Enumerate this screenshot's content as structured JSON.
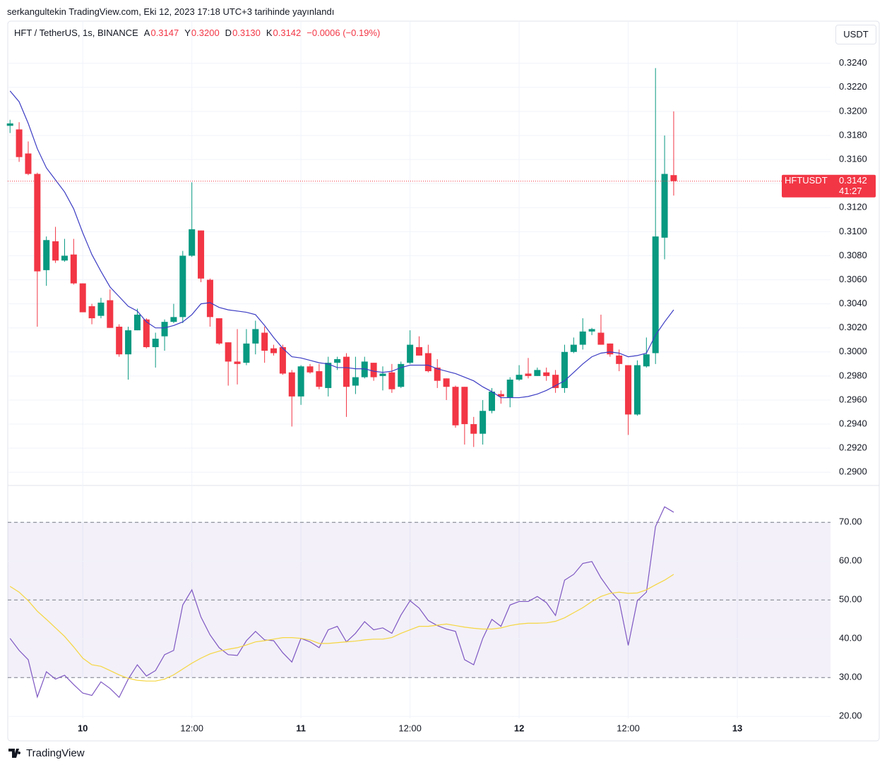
{
  "header": {
    "published": "serkangultekin TradingView.com, Eki 12, 2023 17:18 UTC+3 tarihinde yayınlandı",
    "symbol": "HFT / TetherUS, 1s, BINANCE",
    "ohlc": [
      {
        "key": "A",
        "value": "0.3147"
      },
      {
        "key": "Y",
        "value": "0.3200"
      },
      {
        "key": "D",
        "value": "0.3130"
      },
      {
        "key": "K",
        "value": "0.3142"
      }
    ],
    "change": "−0.0006 (−0.19%)",
    "currency": "USDT"
  },
  "footer": {
    "brand": "TradingView"
  },
  "chart_data": [
    {
      "type": "candlestick",
      "up_color": "#089981",
      "down_color": "#f23645",
      "open": [
        0.3188,
        0.3185,
        0.3165,
        0.3148,
        0.3068,
        0.3092,
        0.3076,
        0.3081,
        0.3057,
        0.3038,
        0.303,
        0.3043,
        0.3021,
        0.2998,
        0.3018,
        0.3027,
        0.3004,
        0.3013,
        0.3025,
        0.3029,
        0.308,
        0.3101,
        0.306,
        0.3028,
        0.3008,
        0.2992,
        0.2991,
        0.3007,
        0.3016,
        0.3003,
        0.3004,
        0.2983,
        0.2963,
        0.2988,
        0.2984,
        0.297,
        0.2991,
        0.2996,
        0.2972,
        0.2979,
        0.2991,
        0.298,
        0.2983,
        0.2971,
        0.2991,
        0.3004,
        0.2999,
        0.2987,
        0.2978,
        0.2971,
        0.2971,
        0.294,
        0.2932,
        0.2951,
        0.2965,
        0.2962,
        0.2977,
        0.2982,
        0.298,
        0.2983,
        0.2981,
        0.297,
        0.3,
        0.3006,
        0.3017,
        0.3016,
        0.3007,
        0.2997,
        0.2989,
        0.2948,
        0.2988,
        0.2999,
        0.3095,
        0.3147
      ],
      "high": [
        0.3193,
        0.3191,
        0.3175,
        0.3149,
        0.3096,
        0.3104,
        0.3094,
        0.3094,
        0.3057,
        0.304,
        0.3045,
        0.3052,
        0.3023,
        0.3021,
        0.3036,
        0.3028,
        0.3016,
        0.3027,
        0.304,
        0.3084,
        0.3141,
        0.3101,
        0.3061,
        0.3028,
        0.3008,
        0.3019,
        0.3019,
        0.3026,
        0.3021,
        0.3006,
        0.3006,
        0.2985,
        0.2989,
        0.299,
        0.299,
        0.2996,
        0.2996,
        0.2999,
        0.2996,
        0.2996,
        0.2991,
        0.2988,
        0.299,
        0.2992,
        0.3018,
        0.3013,
        0.3006,
        0.2994,
        0.2978,
        0.2972,
        0.2971,
        0.2946,
        0.296,
        0.297,
        0.2968,
        0.2979,
        0.2989,
        0.2995,
        0.2987,
        0.2987,
        0.2985,
        0.3006,
        0.3012,
        0.3028,
        0.302,
        0.3031,
        0.3007,
        0.3002,
        0.2989,
        0.2993,
        0.3012,
        0.3236,
        0.318,
        0.32
      ],
      "low": [
        0.3182,
        0.3158,
        0.3147,
        0.3021,
        0.3055,
        0.3074,
        0.3075,
        0.3056,
        0.3033,
        0.3023,
        0.3028,
        0.302,
        0.2996,
        0.2977,
        0.3018,
        0.3003,
        0.2987,
        0.3001,
        0.3024,
        0.3024,
        0.3079,
        0.3058,
        0.3021,
        0.3006,
        0.2972,
        0.2973,
        0.2989,
        0.2998,
        0.2991,
        0.2997,
        0.2981,
        0.2938,
        0.2956,
        0.2982,
        0.2969,
        0.2963,
        0.2985,
        0.2946,
        0.2965,
        0.2978,
        0.2976,
        0.2968,
        0.2966,
        0.297,
        0.299,
        0.2997,
        0.2983,
        0.297,
        0.296,
        0.2937,
        0.2923,
        0.2921,
        0.2923,
        0.2949,
        0.2957,
        0.2954,
        0.2976,
        0.2978,
        0.298,
        0.2976,
        0.2966,
        0.2966,
        0.2999,
        0.3002,
        0.3014,
        0.3006,
        0.2996,
        0.2984,
        0.2931,
        0.2947,
        0.2987,
        0.299,
        0.3077,
        0.313
      ],
      "close": [
        0.319,
        0.3162,
        0.3148,
        0.3067,
        0.3093,
        0.3076,
        0.308,
        0.3057,
        0.3033,
        0.3028,
        0.3041,
        0.302,
        0.2998,
        0.3018,
        0.3031,
        0.3004,
        0.3011,
        0.3025,
        0.3029,
        0.308,
        0.3102,
        0.3061,
        0.3029,
        0.3007,
        0.2992,
        0.299,
        0.3007,
        0.3019,
        0.3001,
        0.2999,
        0.2982,
        0.2963,
        0.2988,
        0.2983,
        0.2971,
        0.2991,
        0.2994,
        0.2971,
        0.2979,
        0.2992,
        0.2979,
        0.2982,
        0.2969,
        0.299,
        0.3006,
        0.2997,
        0.2984,
        0.2976,
        0.2971,
        0.2939,
        0.294,
        0.2932,
        0.2951,
        0.2967,
        0.2963,
        0.2977,
        0.2981,
        0.298,
        0.2985,
        0.298,
        0.297,
        0.3,
        0.3006,
        0.3017,
        0.3019,
        0.3006,
        0.2998,
        0.299,
        0.2948,
        0.2989,
        0.2998,
        0.3096,
        0.3148,
        0.3142
      ],
      "ma": {
        "color": "#3c3cc4",
        "values": [
          0.3217,
          0.3208,
          0.319,
          0.3169,
          0.3153,
          0.3143,
          0.3133,
          0.3119,
          0.3099,
          0.3081,
          0.3067,
          0.3054,
          0.3046,
          0.3038,
          0.3034,
          0.3025,
          0.302,
          0.302,
          0.3022,
          0.3025,
          0.3031,
          0.304,
          0.3041,
          0.3037,
          0.3035,
          0.3034,
          0.3033,
          0.3031,
          0.3022,
          0.3012,
          0.3003,
          0.2996,
          0.2995,
          0.2993,
          0.2991,
          0.299,
          0.2987,
          0.2987,
          0.2986,
          0.2986,
          0.2984,
          0.2983,
          0.2984,
          0.2987,
          0.2989,
          0.2989,
          0.2989,
          0.2986,
          0.2984,
          0.2982,
          0.2979,
          0.2976,
          0.2971,
          0.2967,
          0.2962,
          0.2962,
          0.2962,
          0.2963,
          0.2965,
          0.2968,
          0.2972,
          0.2976,
          0.2983,
          0.299,
          0.2996,
          0.2999,
          0.3,
          0.2999,
          0.2996,
          0.2997,
          0.2999,
          0.3014,
          0.3025,
          0.3035
        ]
      },
      "last_price": {
        "symbol": "HFTUSDT",
        "countdown": "41:27",
        "color": "#f23645"
      },
      "xlim": [
        -0.25,
        90.25
      ],
      "xticks": [
        {
          "value": 8,
          "label": "10"
        },
        {
          "value": 20,
          "label": "12:00"
        },
        {
          "value": 32,
          "label": "11"
        },
        {
          "value": 44,
          "label": "12:00"
        },
        {
          "value": 56,
          "label": "12"
        },
        {
          "value": 68,
          "label": "12:00"
        },
        {
          "value": 80,
          "label": "13"
        }
      ],
      "ylim": [
        0.2889,
        0.3275
      ],
      "yticks": [
        {
          "value": 0.29,
          "label": "0.2900"
        },
        {
          "value": 0.292,
          "label": "0.2920"
        },
        {
          "value": 0.294,
          "label": "0.2940"
        },
        {
          "value": 0.296,
          "label": "0.2960"
        },
        {
          "value": 0.298,
          "label": "0.2980"
        },
        {
          "value": 0.3,
          "label": "0.3000"
        },
        {
          "value": 0.302,
          "label": "0.3020"
        },
        {
          "value": 0.304,
          "label": "0.3040"
        },
        {
          "value": 0.306,
          "label": "0.3060"
        },
        {
          "value": 0.308,
          "label": "0.3080"
        },
        {
          "value": 0.31,
          "label": "0.3100"
        },
        {
          "value": 0.312,
          "label": "0.3120"
        },
        {
          "value": 0.314,
          "label": "0.3140"
        },
        {
          "value": 0.316,
          "label": "0.3160"
        },
        {
          "value": 0.318,
          "label": "0.3180"
        },
        {
          "value": 0.32,
          "label": "0.3200"
        },
        {
          "value": 0.322,
          "label": "0.3220"
        },
        {
          "value": 0.324,
          "label": "0.3240"
        }
      ],
      "grid": true
    },
    {
      "type": "line",
      "series": [
        {
          "color": "#7e57c2",
          "values": [
            40.1,
            37.0,
            34.6,
            25.0,
            31.5,
            29.6,
            30.6,
            28.2,
            26.0,
            25.4,
            28.9,
            27.2,
            24.9,
            29.6,
            33.3,
            30.4,
            31.8,
            35.9,
            37.0,
            48.7,
            52.6,
            45.6,
            41.0,
            37.7,
            35.9,
            35.7,
            39.5,
            41.9,
            39.7,
            39.5,
            36.4,
            34.0,
            40.1,
            39.2,
            37.7,
            42.3,
            43.2,
            39.2,
            41.4,
            44.4,
            42.3,
            42.8,
            41.4,
            46.1,
            49.8,
            47.9,
            44.7,
            43.4,
            42.5,
            41.9,
            34.6,
            33.3,
            40.1,
            45.0,
            43.2,
            48.7,
            49.6,
            49.6,
            50.9,
            49.3,
            46.0,
            55.1,
            56.6,
            59.4,
            59.9,
            55.7,
            52.4,
            49.8,
            38.3,
            49.8,
            52.0,
            68.9,
            74.0,
            72.6
          ]
        },
        {
          "color": "#f5d640",
          "values": [
            53.5,
            52.0,
            49.8,
            47.1,
            45.0,
            42.8,
            40.6,
            37.9,
            35.0,
            33.3,
            32.9,
            31.8,
            30.7,
            29.8,
            29.3,
            29.1,
            29.1,
            29.6,
            30.7,
            32.2,
            33.7,
            35.0,
            36.1,
            36.8,
            37.3,
            37.7,
            38.4,
            39.2,
            39.5,
            39.9,
            40.3,
            40.3,
            40.1,
            39.7,
            38.8,
            38.8,
            39.0,
            39.2,
            39.4,
            39.7,
            39.9,
            39.9,
            40.3,
            41.4,
            42.3,
            43.2,
            43.2,
            43.5,
            43.8,
            43.4,
            43.0,
            42.7,
            42.5,
            42.5,
            42.8,
            43.4,
            43.8,
            44.0,
            44.0,
            44.1,
            44.5,
            45.4,
            46.7,
            48.0,
            49.6,
            50.9,
            51.7,
            52.0,
            51.7,
            51.8,
            52.6,
            53.9,
            55.1,
            56.6
          ]
        }
      ],
      "band": [
        30,
        70
      ],
      "band_color": "#7e57c2",
      "midline": 50,
      "ylim": [
        19.5,
        79.5
      ],
      "yticks": [
        {
          "value": 20,
          "label": "20.00"
        },
        {
          "value": 30,
          "label": "30.00"
        },
        {
          "value": 40,
          "label": "40.00"
        },
        {
          "value": 50,
          "label": "50.00"
        },
        {
          "value": 60,
          "label": "60.00"
        },
        {
          "value": 70,
          "label": "70.00"
        }
      ],
      "grid": true
    }
  ]
}
